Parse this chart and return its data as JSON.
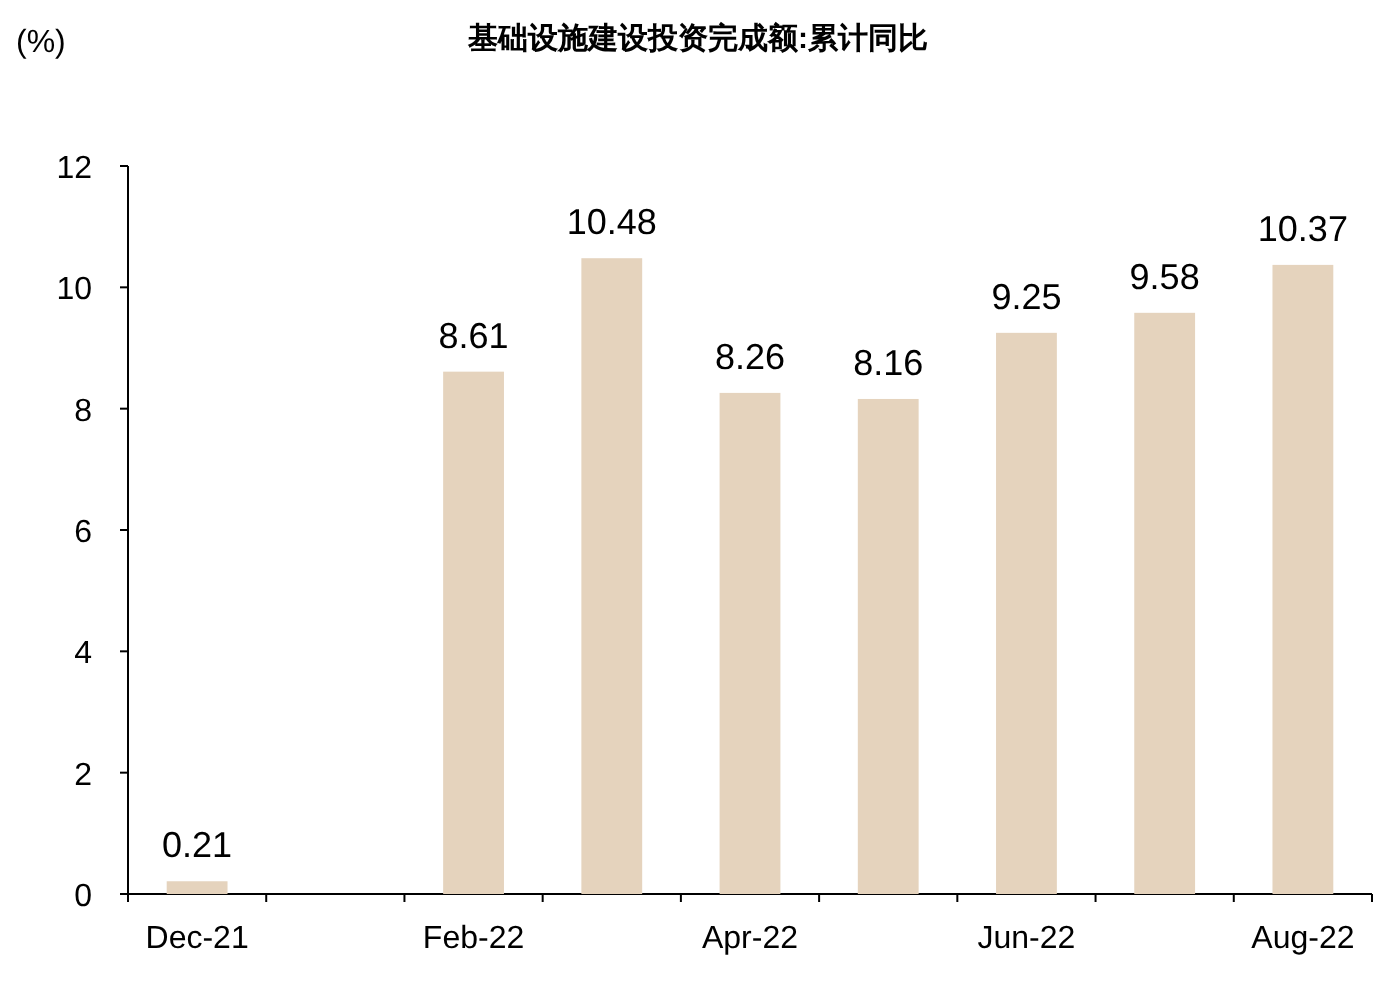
{
  "chart_data": {
    "type": "bar",
    "title": "基础设施建设投资完成额:累计同比",
    "ylabel": "(%)",
    "categories": [
      "Dec-21",
      null,
      "Feb-22",
      null,
      "Apr-22",
      null,
      "Jun-22",
      null,
      "Aug-22"
    ],
    "values": [
      0.21,
      null,
      8.61,
      10.48,
      8.26,
      8.16,
      9.25,
      9.58,
      10.37
    ],
    "color": "#e5d3bd",
    "ylim": [
      0,
      12
    ],
    "yticks": [
      0,
      2,
      4,
      6,
      8,
      10,
      12
    ],
    "data_labels": true,
    "grid": false
  }
}
